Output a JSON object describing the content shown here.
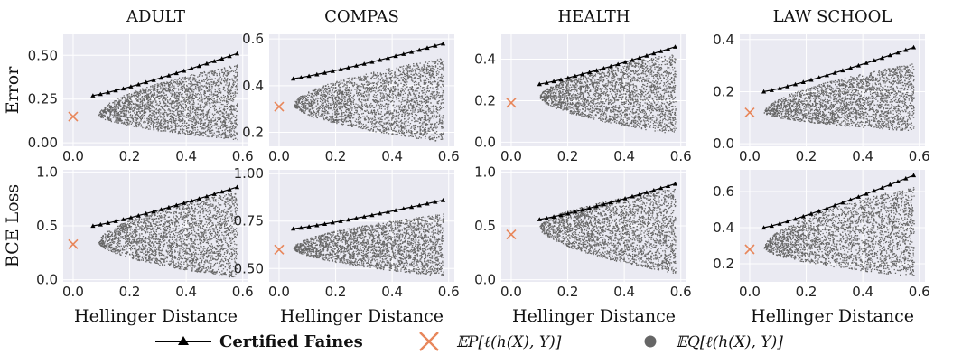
{
  "column_titles": [
    "ADULT",
    "COMPAS",
    "HEALTH",
    "LAW SCHOOL"
  ],
  "row_labels": [
    "Error",
    "BCE Loss"
  ],
  "xlabel": "Hellinger Distance",
  "legend": {
    "certified": "Certified Faines",
    "certified_bold_suffix": "s",
    "ep_label": "𝔼P[ℓ(h(X), Y)]",
    "eq_label": "𝔼Q[ℓ(h(X), Y)]"
  },
  "colors": {
    "plot_bg": "#eaeaf2",
    "grid": "#ffffff",
    "scatter": "#666666",
    "certified_line": "#000000",
    "ep_marker": "#e8865a"
  },
  "chart_data": [
    {
      "type": "scatter",
      "title": "ADULT",
      "ylabel": "Error",
      "xlim": [
        -0.035,
        0.62
      ],
      "ylim": [
        -0.02,
        0.62
      ],
      "yticks": [
        0.0,
        0.25,
        0.5
      ],
      "ytick_labels": [
        "0.00",
        "0.25",
        "0.50"
      ],
      "xticks": [
        0.0,
        0.2,
        0.4,
        0.6
      ],
      "xtick_labels": [
        "0.0",
        "0.2",
        "0.4",
        "0.6"
      ],
      "ep_point": [
        0.0,
        0.15
      ],
      "certified": {
        "x_start": 0.07,
        "x_end": 0.58,
        "y_start": 0.27,
        "y_end": 0.51,
        "n_points": 20
      },
      "cloud": {
        "x_start": 0.09,
        "x_end": 0.58,
        "y_center": 0.16,
        "upper_end": 0.45,
        "lower_end": 0.02
      }
    },
    {
      "type": "scatter",
      "title": "COMPAS",
      "ylabel": "",
      "xlim": [
        -0.035,
        0.62
      ],
      "ylim": [
        0.14,
        0.62
      ],
      "yticks": [
        0.2,
        0.4,
        0.6
      ],
      "ytick_labels": [
        "0.2",
        "0.4",
        "0.6"
      ],
      "xticks": [
        0.0,
        0.2,
        0.4,
        0.6
      ],
      "xtick_labels": [
        "0.0",
        "0.2",
        "0.4",
        "0.6"
      ],
      "ep_point": [
        0.0,
        0.31
      ],
      "certified": {
        "x_start": 0.05,
        "x_end": 0.58,
        "y_start": 0.43,
        "y_end": 0.58,
        "n_points": 20
      },
      "cloud": {
        "x_start": 0.05,
        "x_end": 0.58,
        "y_center": 0.32,
        "upper_end": 0.52,
        "lower_end": 0.16
      }
    },
    {
      "type": "scatter",
      "title": "HEALTH",
      "ylabel": "",
      "xlim": [
        -0.035,
        0.62
      ],
      "ylim": [
        -0.02,
        0.52
      ],
      "yticks": [
        0.0,
        0.2,
        0.4
      ],
      "ytick_labels": [
        "0.0",
        "0.2",
        "0.4"
      ],
      "xticks": [
        0.0,
        0.2,
        0.4,
        0.6
      ],
      "xtick_labels": [
        "0.0",
        "0.2",
        "0.4",
        "0.6"
      ],
      "ep_point": [
        0.0,
        0.19
      ],
      "certified": {
        "x_start": 0.1,
        "x_end": 0.58,
        "y_start": 0.28,
        "y_end": 0.46,
        "n_points": 20
      },
      "cloud": {
        "x_start": 0.1,
        "x_end": 0.58,
        "y_center": 0.22,
        "upper_end": 0.43,
        "lower_end": 0.04
      }
    },
    {
      "type": "scatter",
      "title": "LAW SCHOOL",
      "ylabel": "",
      "xlim": [
        -0.035,
        0.62
      ],
      "ylim": [
        -0.01,
        0.42
      ],
      "yticks": [
        0.0,
        0.2,
        0.4
      ],
      "ytick_labels": [
        "0.0",
        "0.2",
        "0.4"
      ],
      "xticks": [
        0.0,
        0.2,
        0.4,
        0.6
      ],
      "xtick_labels": [
        "0.0",
        "0.2",
        "0.4",
        "0.6"
      ],
      "ep_point": [
        0.0,
        0.12
      ],
      "certified": {
        "x_start": 0.05,
        "x_end": 0.58,
        "y_start": 0.2,
        "y_end": 0.37,
        "n_points": 20
      },
      "cloud": {
        "x_start": 0.05,
        "x_end": 0.58,
        "y_center": 0.12,
        "upper_end": 0.31,
        "lower_end": 0.05
      }
    },
    {
      "type": "scatter",
      "title": "",
      "ylabel": "BCE Loss",
      "xlim": [
        -0.035,
        0.62
      ],
      "ylim": [
        -0.02,
        1.02
      ],
      "yticks": [
        0.0,
        0.5,
        1.0
      ],
      "ytick_labels": [
        "0.0",
        "0.5",
        "1.0"
      ],
      "xticks": [
        0.0,
        0.2,
        0.4,
        0.6
      ],
      "xtick_labels": [
        "0.0",
        "0.2",
        "0.4",
        "0.6"
      ],
      "ep_point": [
        0.0,
        0.33
      ],
      "certified": {
        "x_start": 0.07,
        "x_end": 0.58,
        "y_start": 0.5,
        "y_end": 0.86,
        "n_points": 20
      },
      "cloud": {
        "x_start": 0.09,
        "x_end": 0.58,
        "y_center": 0.35,
        "upper_end": 0.82,
        "lower_end": 0.02
      }
    },
    {
      "type": "scatter",
      "title": "",
      "ylabel": "",
      "xlim": [
        -0.035,
        0.62
      ],
      "ylim": [
        0.43,
        1.02
      ],
      "yticks": [
        0.5,
        0.75,
        1.0
      ],
      "ytick_labels": [
        "0.50",
        "0.75",
        "1.00"
      ],
      "xticks": [
        0.0,
        0.2,
        0.4,
        0.6
      ],
      "xtick_labels": [
        "0.0",
        "0.2",
        "0.4",
        "0.6"
      ],
      "ep_point": [
        0.0,
        0.6
      ],
      "certified": {
        "x_start": 0.05,
        "x_end": 0.58,
        "y_start": 0.71,
        "y_end": 0.86,
        "n_points": 20
      },
      "cloud": {
        "x_start": 0.05,
        "x_end": 0.58,
        "y_center": 0.61,
        "upper_end": 0.79,
        "lower_end": 0.46
      }
    },
    {
      "type": "scatter",
      "title": "",
      "ylabel": "",
      "xlim": [
        -0.035,
        0.62
      ],
      "ylim": [
        -0.02,
        1.02
      ],
      "yticks": [
        0.0,
        0.5,
        1.0
      ],
      "ytick_labels": [
        "0.0",
        "0.5",
        "1.0"
      ],
      "xticks": [
        0.0,
        0.2,
        0.4,
        0.6
      ],
      "xtick_labels": [
        "0.0",
        "0.2",
        "0.4",
        "0.6"
      ],
      "ep_point": [
        0.0,
        0.42
      ],
      "certified": {
        "x_start": 0.1,
        "x_end": 0.58,
        "y_start": 0.56,
        "y_end": 0.89,
        "n_points": 20
      },
      "cloud": {
        "x_start": 0.1,
        "x_end": 0.58,
        "y_center": 0.49,
        "upper_end": 0.85,
        "lower_end": 0.06
      }
    },
    {
      "type": "scatter",
      "title": "",
      "ylabel": "",
      "xlim": [
        -0.035,
        0.62
      ],
      "ylim": [
        0.1,
        0.72
      ],
      "yticks": [
        0.2,
        0.4,
        0.6
      ],
      "ytick_labels": [
        "0.2",
        "0.4",
        "0.6"
      ],
      "xticks": [
        0.0,
        0.2,
        0.4,
        0.6
      ],
      "xtick_labels": [
        "0.0",
        "0.2",
        "0.4",
        "0.6"
      ],
      "ep_point": [
        0.0,
        0.28
      ],
      "certified": {
        "x_start": 0.05,
        "x_end": 0.58,
        "y_start": 0.4,
        "y_end": 0.69,
        "n_points": 20
      },
      "cloud": {
        "x_start": 0.05,
        "x_end": 0.58,
        "y_center": 0.29,
        "upper_end": 0.63,
        "lower_end": 0.13
      }
    }
  ]
}
